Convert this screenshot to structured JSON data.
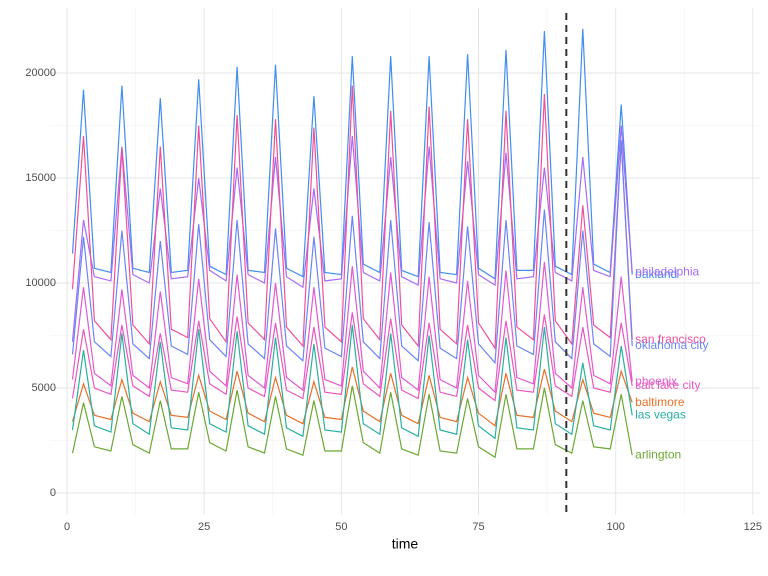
{
  "chart_data": {
    "type": "line",
    "x_label": "time",
    "x": [
      1,
      3,
      5,
      8,
      10,
      12,
      15,
      17,
      19,
      22,
      24,
      26,
      29,
      31,
      33,
      36,
      38,
      40,
      43,
      45,
      47,
      50,
      52,
      54,
      57,
      59,
      61,
      64,
      66,
      68,
      71,
      73,
      75,
      78,
      80,
      82,
      85,
      87,
      89,
      92,
      94,
      96,
      99,
      101,
      103
    ],
    "xlim": [
      -3.1,
      126.3
    ],
    "xticks": [
      0,
      25,
      50,
      75,
      100,
      125
    ],
    "ylim": [
      -1048,
      23095
    ],
    "yticks": [
      0,
      5000,
      10000,
      15000,
      20000
    ],
    "grid": true,
    "vline": 91,
    "series": [
      {
        "name": "oakland",
        "color": "#3f8ff0",
        "values": [
          11400,
          19200,
          10700,
          10500,
          19400,
          10700,
          10500,
          18800,
          10500,
          10600,
          19700,
          10800,
          10400,
          20300,
          10600,
          10500,
          20400,
          10700,
          10300,
          18900,
          10500,
          10400,
          20800,
          10900,
          10500,
          20800,
          10600,
          10300,
          20800,
          10500,
          10400,
          20900,
          10700,
          10200,
          21100,
          10600,
          10600,
          22000,
          10800,
          10400,
          22100,
          10900,
          10500,
          18500,
          10400
        ]
      },
      {
        "name": "philadelphia",
        "color": "#a56cf4",
        "values": [
          7200,
          13000,
          10300,
          10100,
          16500,
          10400,
          10000,
          14500,
          10200,
          10300,
          15000,
          10600,
          10100,
          15500,
          10400,
          10000,
          16000,
          10300,
          9800,
          14500,
          10100,
          10200,
          17000,
          10500,
          10100,
          16000,
          10300,
          9900,
          16500,
          10200,
          10000,
          15800,
          10400,
          9900,
          16200,
          10200,
          10300,
          15500,
          10500,
          10100,
          16000,
          10600,
          10300,
          17500,
          10500
        ]
      },
      {
        "name": "san francisco",
        "color": "#f0509a",
        "values": [
          9700,
          17000,
          8200,
          7300,
          16400,
          8000,
          7100,
          16500,
          7800,
          7400,
          17500,
          8300,
          7200,
          18000,
          8100,
          7300,
          17800,
          7900,
          7000,
          17400,
          7900,
          7200,
          19400,
          8300,
          7300,
          18200,
          8000,
          7000,
          18400,
          7800,
          7100,
          17800,
          8100,
          6900,
          18200,
          7900,
          7300,
          19000,
          8200,
          7100,
          13700,
          8000,
          7400,
          16700,
          7300
        ]
      },
      {
        "name": "oklahoma city",
        "color": "#6a86f5",
        "values": [
          6600,
          12200,
          7200,
          6500,
          12500,
          7100,
          6400,
          12000,
          7000,
          6600,
          12800,
          7300,
          6500,
          13000,
          7100,
          6400,
          12600,
          7000,
          6300,
          12200,
          6900,
          6500,
          13200,
          7200,
          6400,
          13000,
          7000,
          6300,
          12900,
          6900,
          6400,
          12700,
          7100,
          6200,
          13000,
          7000,
          6600,
          13500,
          7200,
          6400,
          12500,
          7100,
          6500,
          16800,
          7000
        ]
      },
      {
        "name": "phoenix",
        "color": "#e05ad0",
        "values": [
          5400,
          9800,
          5700,
          5100,
          9700,
          5600,
          5000,
          9600,
          5500,
          5200,
          10200,
          5800,
          5100,
          10400,
          5600,
          5000,
          10000,
          5500,
          4900,
          9800,
          5400,
          5100,
          10800,
          5800,
          5000,
          10500,
          5500,
          4900,
          10300,
          5400,
          5000,
          10100,
          5600,
          4800,
          10600,
          5500,
          5200,
          11000,
          5700,
          5000,
          9800,
          5600,
          5200,
          10300,
          5300
        ]
      },
      {
        "name": "salt lake city",
        "color": "#e858c0",
        "values": [
          4500,
          7800,
          5000,
          4700,
          8000,
          5100,
          4600,
          7600,
          4900,
          4800,
          8200,
          5200,
          4700,
          8400,
          5000,
          4600,
          8100,
          4900,
          4500,
          7900,
          4800,
          4700,
          8600,
          5200,
          4600,
          8300,
          4900,
          4500,
          8100,
          4800,
          4600,
          8000,
          5000,
          4400,
          8200,
          4900,
          4800,
          8500,
          5100,
          4600,
          7900,
          5000,
          4800,
          8100,
          5100
        ]
      },
      {
        "name": "baltimore",
        "color": "#e8702a",
        "values": [
          3400,
          5200,
          3700,
          3500,
          5400,
          3800,
          3400,
          5300,
          3700,
          3600,
          5600,
          3900,
          3500,
          5800,
          3800,
          3400,
          5500,
          3700,
          3300,
          5300,
          3600,
          3500,
          6000,
          3900,
          3400,
          5700,
          3700,
          3300,
          5600,
          3600,
          3400,
          5500,
          3800,
          3200,
          5700,
          3700,
          3600,
          5900,
          3900,
          3400,
          5400,
          3800,
          3600,
          5800,
          4300
        ]
      },
      {
        "name": "las vegas",
        "color": "#28b0a0",
        "values": [
          3000,
          6800,
          3200,
          2900,
          7600,
          3300,
          2800,
          7200,
          3100,
          3000,
          7800,
          3300,
          2900,
          7700,
          3200,
          2800,
          7400,
          3100,
          2700,
          7100,
          3000,
          2900,
          8000,
          3300,
          2800,
          7600,
          3100,
          2700,
          7500,
          3000,
          2800,
          7300,
          3200,
          2600,
          7400,
          3100,
          3000,
          7900,
          3300,
          2800,
          6200,
          3200,
          3000,
          7000,
          3700
        ]
      },
      {
        "name": "arlington",
        "color": "#6aa832",
        "values": [
          1900,
          4300,
          2200,
          2000,
          4600,
          2300,
          1900,
          4400,
          2100,
          2100,
          4800,
          2400,
          2000,
          4900,
          2200,
          1900,
          4600,
          2100,
          1800,
          4400,
          2000,
          2000,
          5100,
          2400,
          1900,
          4800,
          2100,
          1800,
          4700,
          2000,
          1900,
          4500,
          2200,
          1700,
          4700,
          2100,
          2100,
          5000,
          2300,
          1900,
          4400,
          2200,
          2100,
          4700,
          1800
        ]
      }
    ]
  }
}
